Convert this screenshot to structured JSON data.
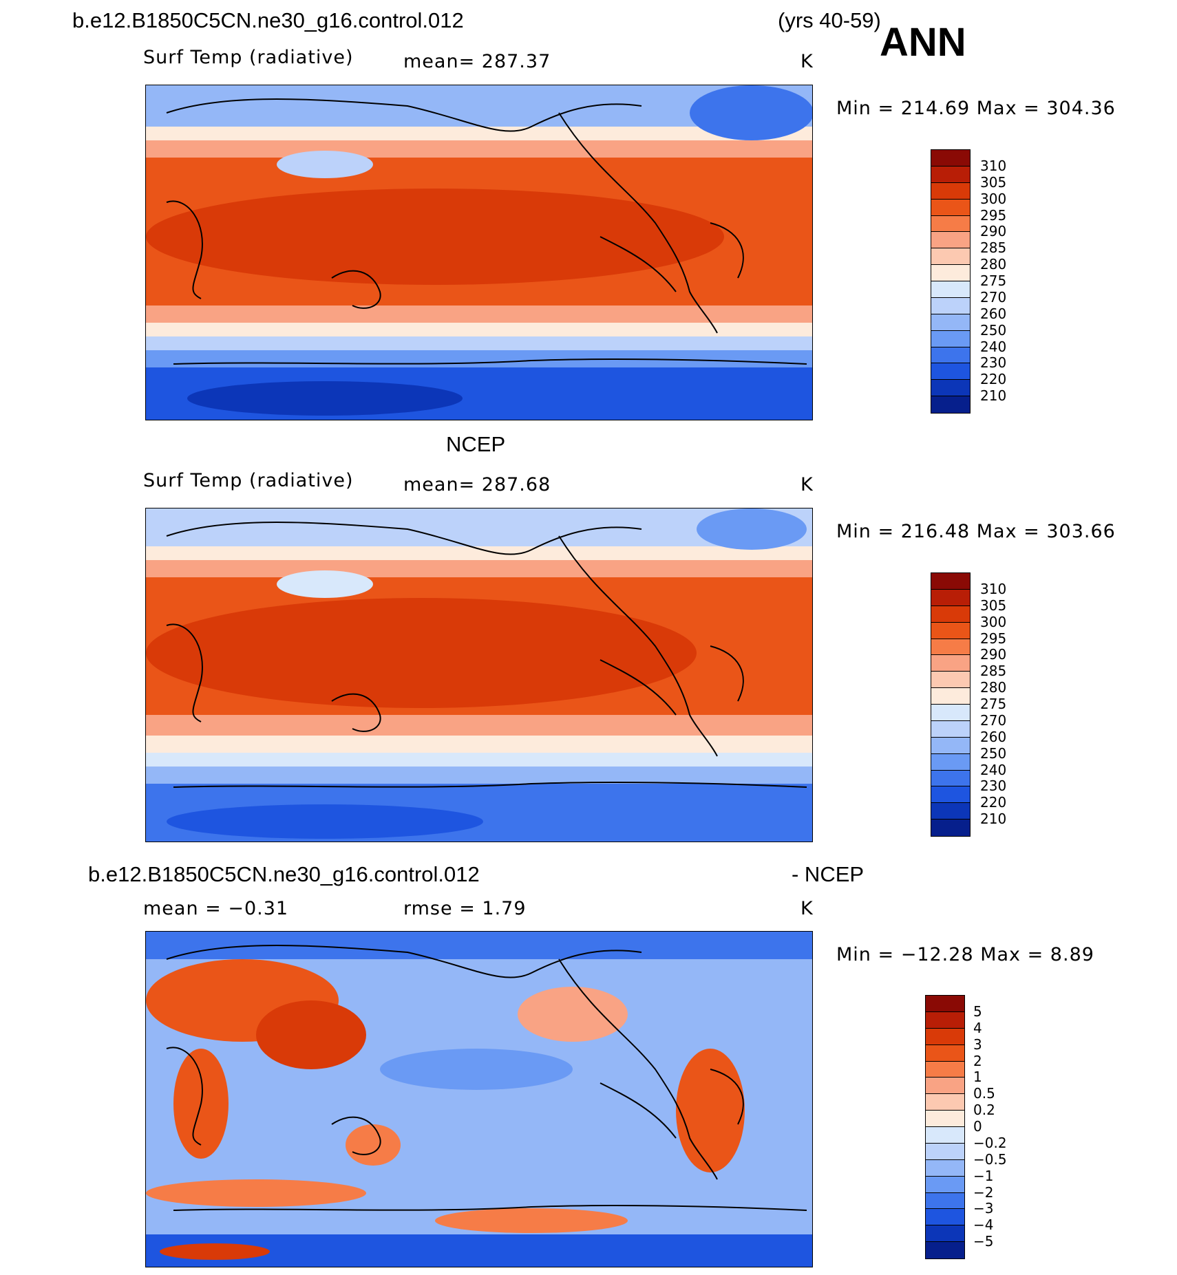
{
  "header": {
    "case_title": "b.e12.B1850C5CN.ne30_g16.control.012",
    "years": "(yrs 40-59)",
    "season": "ANN"
  },
  "panel1": {
    "variable": "Surf Temp (radiative)",
    "mean_text": "mean= 287.37",
    "units": "K",
    "minmax": "Min = 214.69 Max = 304.36"
  },
  "panel2": {
    "title": "NCEP",
    "variable": "Surf Temp (radiative)",
    "mean_text": "mean= 287.68",
    "units": "K",
    "minmax": "Min = 216.48 Max = 303.66"
  },
  "panel3": {
    "title_left": "b.e12.B1850C5CN.ne30_g16.control.012",
    "title_right": "- NCEP",
    "mean_text": "mean =   −0.31",
    "rmse_text": "rmse =    1.79",
    "units": "K",
    "minmax": "Min = −12.28 Max =    8.89"
  },
  "colorbar_abs": {
    "labels": [
      "310",
      "305",
      "300",
      "295",
      "290",
      "285",
      "280",
      "275",
      "270",
      "260",
      "250",
      "240",
      "230",
      "220",
      "210"
    ],
    "colors": [
      "#8a0a05",
      "#b81e06",
      "#d93a08",
      "#ea5518",
      "#f67c47",
      "#f9a384",
      "#fcc9b1",
      "#fdebdc",
      "#d8e8fb",
      "#bcd2fa",
      "#94b7f7",
      "#6a9af4",
      "#3d74ec",
      "#1e55e0",
      "#0c36b8",
      "#061f8c"
    ]
  },
  "colorbar_diff": {
    "labels": [
      "5",
      "4",
      "3",
      "2",
      "1",
      "0.5",
      "0.2",
      "0",
      "−0.2",
      "−0.5",
      "−1",
      "−2",
      "−3",
      "−4",
      "−5"
    ],
    "colors": [
      "#8a0a05",
      "#b81e06",
      "#d93a08",
      "#ea5518",
      "#f67c47",
      "#f9a384",
      "#fcc9b1",
      "#fdebdc",
      "#d8e8fb",
      "#bcd2fa",
      "#94b7f7",
      "#6a9af4",
      "#3d74ec",
      "#1e55e0",
      "#0c36b8",
      "#061f8c"
    ]
  }
}
